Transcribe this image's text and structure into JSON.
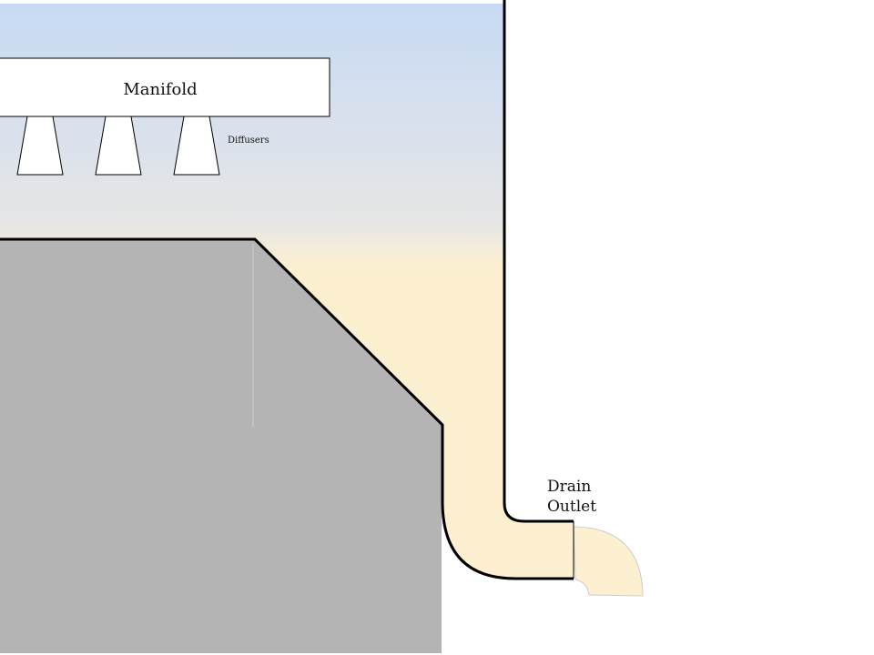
{
  "labels": {
    "manifold": "Manifold",
    "diffusers": "Diffusers",
    "drain_line1": "Drain",
    "drain_line2": "Outlet"
  },
  "colors": {
    "sky_top": "#c8daf5",
    "sky_mid": "#e6e6e6",
    "fluid": "#fdf0d0",
    "ground": "#b4b4b4",
    "outline": "#000000",
    "box_fill": "#ffffff",
    "spout_stroke": "#cccccc"
  }
}
